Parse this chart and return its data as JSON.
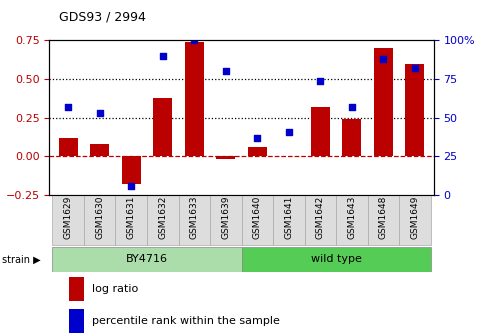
{
  "title": "GDS93 / 2994",
  "samples": [
    "GSM1629",
    "GSM1630",
    "GSM1631",
    "GSM1632",
    "GSM1633",
    "GSM1639",
    "GSM1640",
    "GSM1641",
    "GSM1642",
    "GSM1643",
    "GSM1648",
    "GSM1649"
  ],
  "log_ratio": [
    0.12,
    0.08,
    -0.18,
    0.38,
    0.74,
    -0.02,
    0.06,
    0.0,
    0.32,
    0.24,
    0.7,
    0.6
  ],
  "percentile_rank": [
    57,
    53,
    6,
    90,
    100,
    80,
    37,
    41,
    74,
    57,
    88,
    82
  ],
  "bar_color": "#BB0000",
  "point_color": "#0000CC",
  "ylim_left": [
    -0.25,
    0.75
  ],
  "ylim_right": [
    0,
    100
  ],
  "yticks_left": [
    -0.25,
    0.0,
    0.25,
    0.5,
    0.75
  ],
  "yticks_right": [
    0,
    25,
    50,
    75,
    100
  ],
  "hline_y": [
    0.25,
    0.5
  ],
  "zero_line_color": "#BB0000",
  "dotted_line_color": "black",
  "group_by4716": {
    "label": "BY4716",
    "start": 0,
    "end": 5,
    "color": "#aaddaa"
  },
  "group_wildtype": {
    "label": "wild type",
    "start": 6,
    "end": 11,
    "color": "#55cc55"
  },
  "strain_label": "strain",
  "legend_log_ratio": "log ratio",
  "legend_percentile": "percentile rank within the sample"
}
